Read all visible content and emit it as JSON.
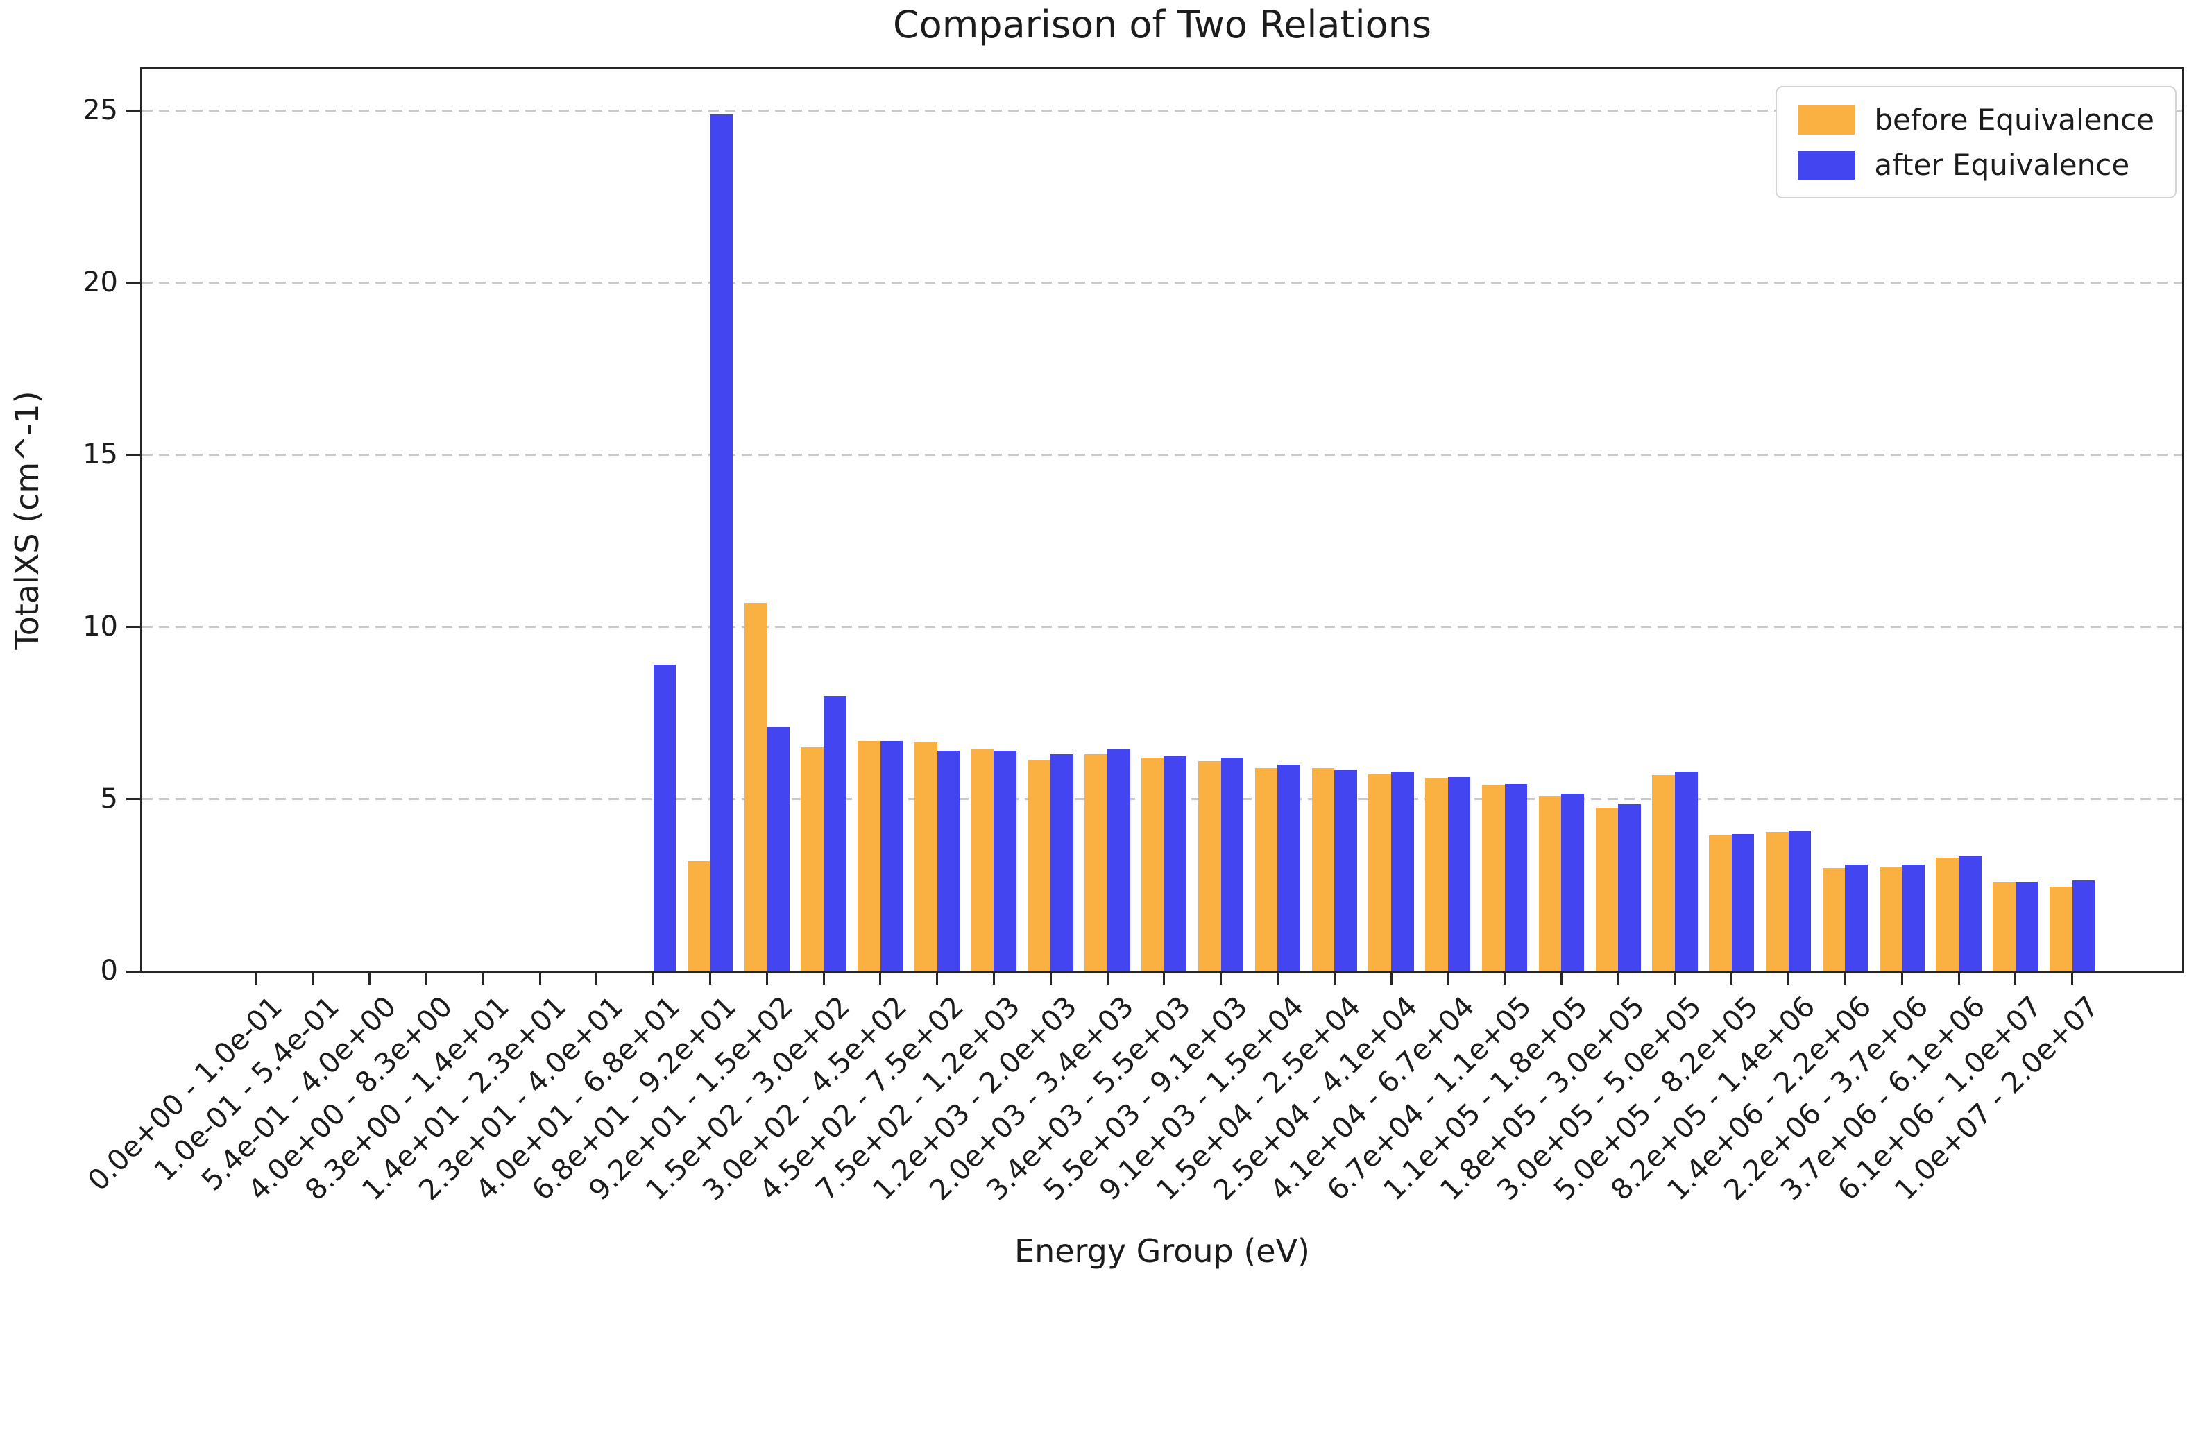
{
  "figure": {
    "title": "Comparison of Two Relations",
    "xlabel": "Energy Group (eV)",
    "ylabel": "TotalXS (cm^-1)"
  },
  "legend": {
    "items": [
      {
        "label": "before Equivalence",
        "color": "#fbb042"
      },
      {
        "label": "after Equivalence",
        "color": "#4245f0"
      }
    ]
  },
  "chart_data": {
    "type": "bar",
    "title": "Comparison of Two Relations",
    "xlabel": "Energy Group (eV)",
    "ylabel": "TotalXS (cm^-1)",
    "grid": "horizontal dashed",
    "legend_position": "upper right",
    "bar_width": 0.4,
    "ylim": [
      0,
      26.2
    ],
    "yticks": [
      0,
      5,
      10,
      15,
      20,
      25
    ],
    "categories": [
      "0.0e+00 - 1.0e-01",
      "1.0e-01 - 5.4e-01",
      "5.4e-01 - 4.0e+00",
      "4.0e+00 - 8.3e+00",
      "8.3e+00 - 1.4e+01",
      "1.4e+01 - 2.3e+01",
      "2.3e+01 - 4.0e+01",
      "4.0e+01 - 6.8e+01",
      "6.8e+01 - 9.2e+01",
      "9.2e+01 - 1.5e+02",
      "1.5e+02 - 3.0e+02",
      "3.0e+02 - 4.5e+02",
      "4.5e+02 - 7.5e+02",
      "7.5e+02 - 1.2e+03",
      "1.2e+03 - 2.0e+03",
      "2.0e+03 - 3.4e+03",
      "3.4e+03 - 5.5e+03",
      "5.5e+03 - 9.1e+03",
      "9.1e+03 - 1.5e+04",
      "1.5e+04 - 2.5e+04",
      "2.5e+04 - 4.1e+04",
      "4.1e+04 - 6.7e+04",
      "6.7e+04 - 1.1e+05",
      "1.1e+05 - 1.8e+05",
      "1.8e+05 - 3.0e+05",
      "3.0e+05 - 5.0e+05",
      "5.0e+05 - 8.2e+05",
      "8.2e+05 - 1.4e+06",
      "1.4e+06 - 2.2e+06",
      "2.2e+06 - 3.7e+06",
      "3.7e+06 - 6.1e+06",
      "6.1e+06 - 1.0e+07",
      "1.0e+07 - 2.0e+07"
    ],
    "series": [
      {
        "name": "before Equivalence",
        "color": "#fbb042",
        "values": [
          0,
          0,
          0,
          0,
          0,
          0,
          0,
          0,
          3.2,
          10.7,
          6.5,
          6.7,
          6.65,
          6.45,
          6.15,
          6.3,
          6.2,
          6.1,
          5.9,
          5.9,
          5.75,
          5.6,
          5.4,
          5.1,
          4.75,
          5.7,
          3.95,
          4.05,
          3.0,
          3.05,
          3.3,
          2.6,
          2.45
        ]
      },
      {
        "name": "after Equivalence",
        "color": "#4245f0",
        "values": [
          0,
          0,
          0,
          0,
          0,
          0,
          0,
          8.9,
          24.9,
          7.1,
          8.0,
          6.7,
          6.4,
          6.4,
          6.3,
          6.45,
          6.25,
          6.2,
          6.0,
          5.85,
          5.8,
          5.65,
          5.45,
          5.15,
          4.85,
          5.8,
          4.0,
          4.1,
          3.1,
          3.1,
          3.35,
          2.6,
          2.65
        ]
      }
    ]
  }
}
